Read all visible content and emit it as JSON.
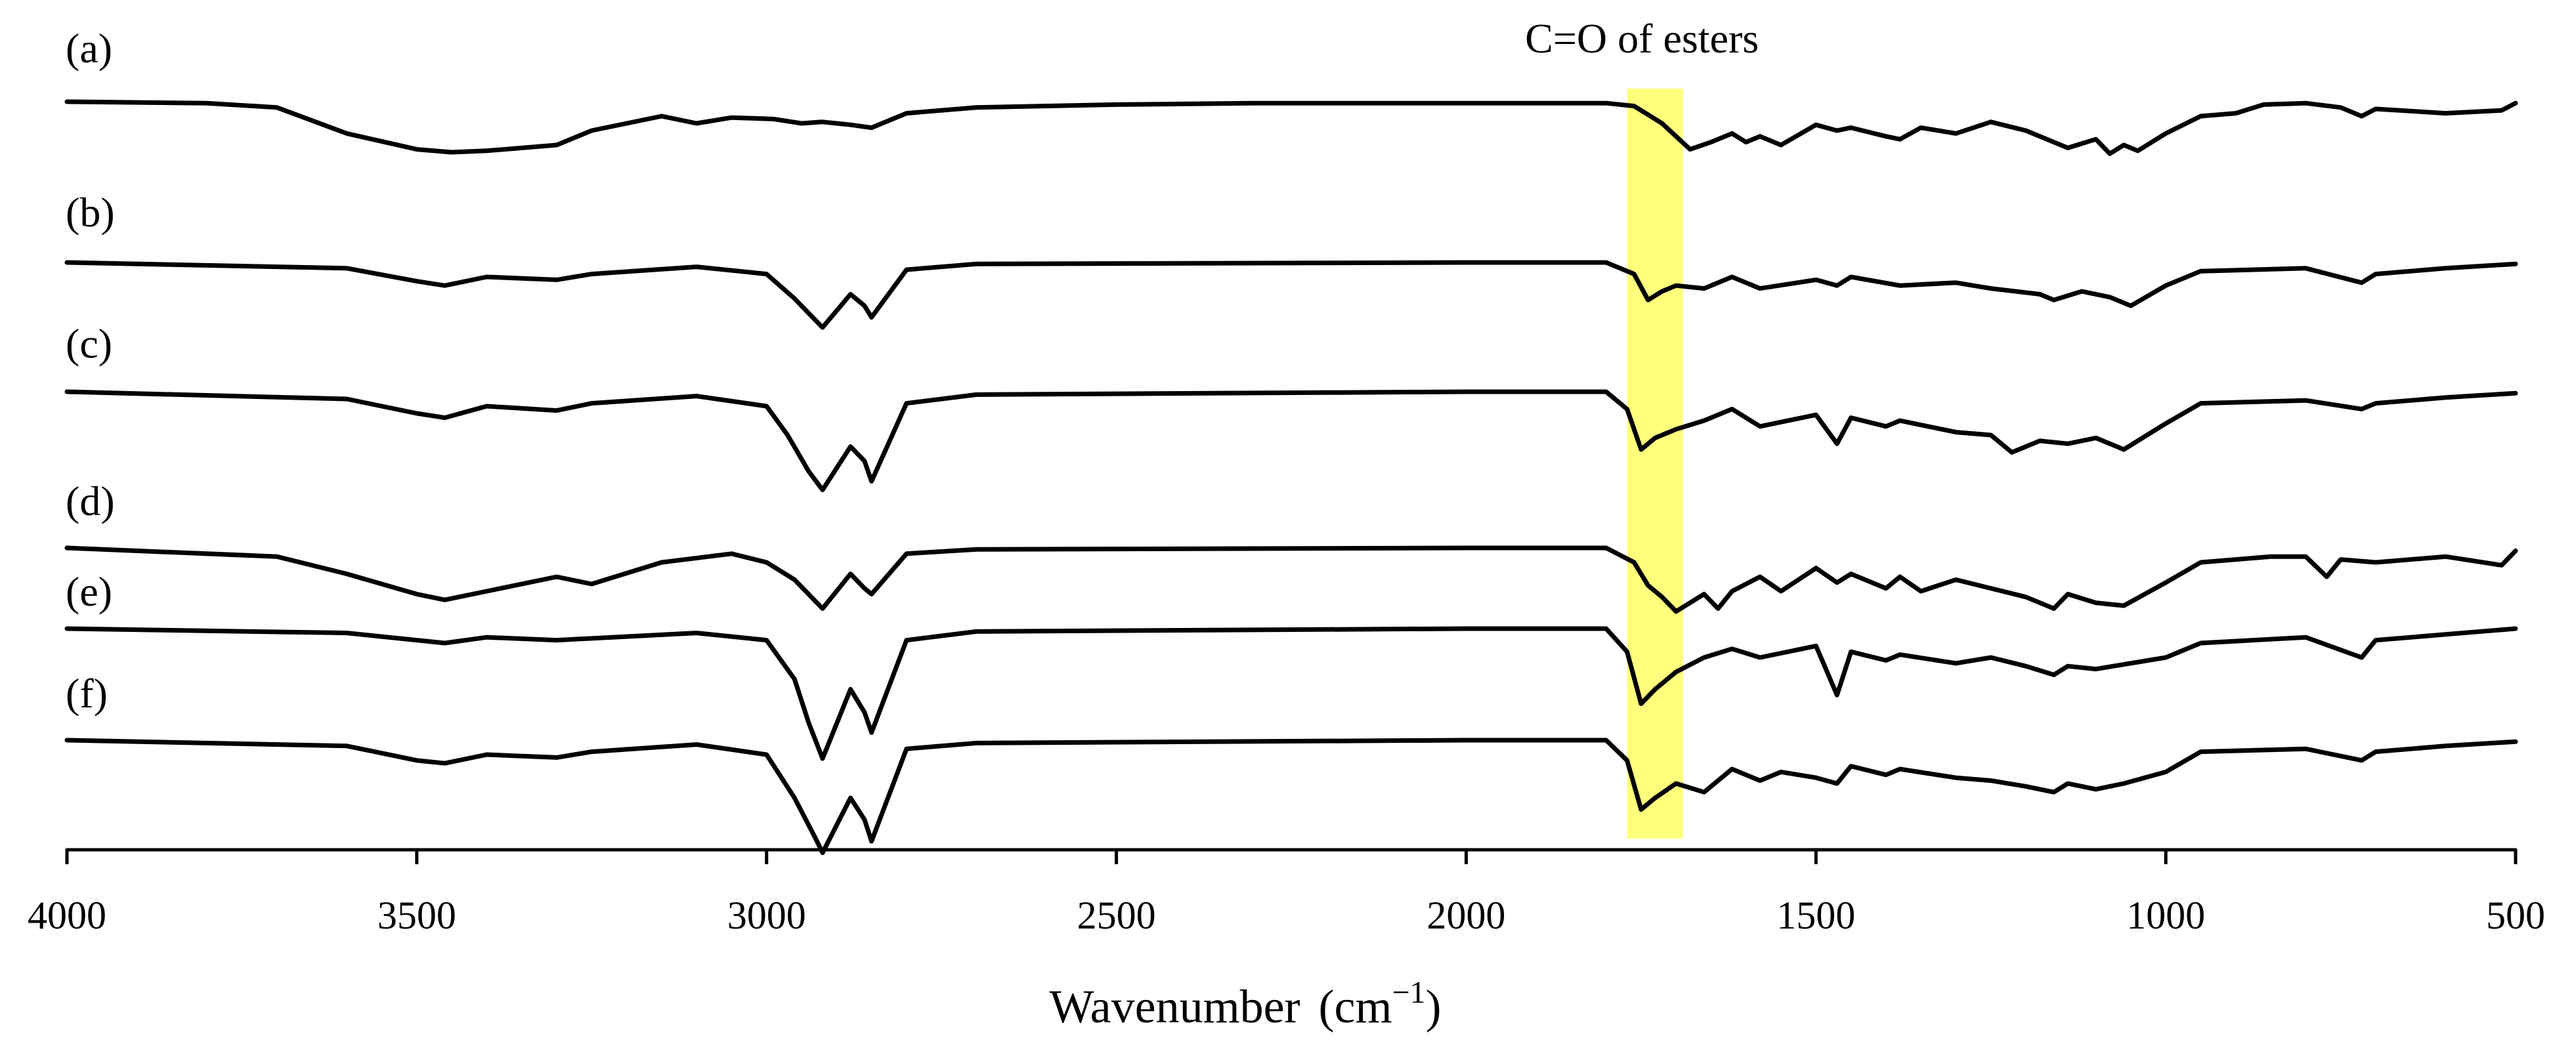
{
  "chart_data": {
    "type": "line",
    "title": "",
    "xlabel": "Wavenumber",
    "xlabel_unit_base": "cm",
    "xlabel_unit_exp": "−1",
    "ylabel": "",
    "xlim": [
      4000,
      500
    ],
    "x_reversed": true,
    "grid": false,
    "xticks": [
      "4000",
      "3500",
      "3000",
      "2500",
      "2000",
      "1500",
      "1000",
      "500"
    ],
    "xtick_values": [
      4000,
      3500,
      3000,
      2500,
      2000,
      1500,
      1000,
      500
    ],
    "highlight": {
      "x_range": [
        1770,
        1690
      ],
      "color": "#ffff66",
      "label": "C=O of esters"
    },
    "colors": {
      "line": "#000000",
      "highlight": "#ffff66"
    },
    "series": [
      {
        "name": "(a)",
        "x": [
          4000,
          3800,
          3700,
          3600,
          3500,
          3450,
          3400,
          3300,
          3250,
          3150,
          3100,
          3050,
          2990,
          2950,
          2920,
          2880,
          2850,
          2800,
          2700,
          2500,
          2300,
          2000,
          1800,
          1760,
          1740,
          1720,
          1700,
          1680,
          1650,
          1620,
          1600,
          1580,
          1550,
          1500,
          1470,
          1450,
          1400,
          1380,
          1350,
          1300,
          1250,
          1200,
          1160,
          1140,
          1100,
          1080,
          1060,
          1040,
          1000,
          950,
          900,
          860,
          800,
          750,
          720,
          700,
          600,
          520,
          500
        ],
        "values": [
          0,
          -1,
          -4,
          -22,
          -33,
          -35,
          -34,
          -30,
          -20,
          -10,
          -15,
          -11,
          -12,
          -15,
          -14,
          -16,
          -18,
          -8,
          -4,
          -2,
          -1,
          -1,
          -1,
          -3,
          -9,
          -15,
          -24,
          -33,
          -28,
          -22,
          -28,
          -24,
          -30,
          -16,
          -20,
          -18,
          -24,
          -26,
          -18,
          -22,
          -14,
          -20,
          -28,
          -32,
          -26,
          -36,
          -30,
          -34,
          -22,
          -10,
          -8,
          -2,
          -1,
          -4,
          -10,
          -5,
          -8,
          -6,
          -1
        ]
      },
      {
        "name": "(b)",
        "x": [
          4000,
          3600,
          3500,
          3460,
          3400,
          3300,
          3250,
          3100,
          3000,
          2960,
          2920,
          2880,
          2860,
          2850,
          2800,
          2700,
          2000,
          1800,
          1760,
          1740,
          1720,
          1700,
          1660,
          1620,
          1580,
          1500,
          1470,
          1450,
          1380,
          1300,
          1250,
          1180,
          1160,
          1120,
          1080,
          1050,
          1000,
          950,
          800,
          720,
          700,
          600,
          500
        ],
        "values": [
          0,
          -4,
          -13,
          -16,
          -10,
          -12,
          -8,
          -3,
          -8,
          -25,
          -45,
          -22,
          -30,
          -38,
          -5,
          -1,
          0,
          0,
          -8,
          -26,
          -20,
          -16,
          -18,
          -10,
          -18,
          -12,
          -16,
          -10,
          -16,
          -14,
          -18,
          -22,
          -26,
          -20,
          -24,
          -30,
          -16,
          -6,
          -4,
          -14,
          -8,
          -4,
          -1
        ]
      },
      {
        "name": "(c)",
        "x": [
          4000,
          3600,
          3500,
          3460,
          3400,
          3300,
          3250,
          3100,
          3000,
          2970,
          2940,
          2920,
          2880,
          2860,
          2850,
          2800,
          2700,
          2000,
          1800,
          1770,
          1750,
          1730,
          1700,
          1660,
          1620,
          1580,
          1500,
          1470,
          1450,
          1400,
          1380,
          1300,
          1250,
          1220,
          1180,
          1140,
          1100,
          1060,
          1000,
          950,
          800,
          720,
          700,
          600,
          500
        ],
        "values": [
          0,
          -5,
          -15,
          -18,
          -10,
          -13,
          -8,
          -3,
          -10,
          -30,
          -55,
          -68,
          -38,
          -48,
          -62,
          -8,
          -2,
          0,
          0,
          -12,
          -40,
          -32,
          -26,
          -20,
          -12,
          -24,
          -16,
          -36,
          -18,
          -24,
          -20,
          -28,
          -30,
          -42,
          -34,
          -36,
          -32,
          -40,
          -22,
          -8,
          -6,
          -12,
          -8,
          -4,
          -1
        ]
      },
      {
        "name": "(d)",
        "x": [
          4000,
          3700,
          3600,
          3500,
          3460,
          3400,
          3300,
          3250,
          3150,
          3050,
          3000,
          2960,
          2920,
          2880,
          2860,
          2850,
          2800,
          2700,
          2000,
          1800,
          1760,
          1740,
          1720,
          1700,
          1660,
          1640,
          1620,
          1580,
          1550,
          1500,
          1470,
          1450,
          1400,
          1380,
          1350,
          1300,
          1250,
          1200,
          1160,
          1140,
          1100,
          1060,
          1000,
          950,
          850,
          800,
          770,
          750,
          700,
          600,
          520,
          500
        ],
        "values": [
          0,
          -6,
          -18,
          -32,
          -36,
          -30,
          -20,
          -25,
          -10,
          -4,
          -10,
          -22,
          -42,
          -18,
          -28,
          -32,
          -4,
          -1,
          0,
          0,
          -10,
          -26,
          -34,
          -44,
          -32,
          -42,
          -30,
          -20,
          -30,
          -14,
          -24,
          -18,
          -28,
          -20,
          -30,
          -22,
          -28,
          -34,
          -42,
          -32,
          -38,
          -40,
          -24,
          -10,
          -6,
          -6,
          -20,
          -8,
          -10,
          -6,
          -12,
          -2
        ]
      },
      {
        "name": "(e)",
        "x": [
          4000,
          3600,
          3500,
          3460,
          3400,
          3300,
          3100,
          3000,
          2960,
          2940,
          2920,
          2880,
          2860,
          2850,
          2800,
          2700,
          2000,
          1800,
          1770,
          1750,
          1730,
          1700,
          1660,
          1620,
          1580,
          1500,
          1470,
          1450,
          1400,
          1380,
          1300,
          1250,
          1200,
          1160,
          1140,
          1100,
          1000,
          950,
          800,
          720,
          700,
          600,
          500
        ],
        "values": [
          0,
          -3,
          -8,
          -10,
          -6,
          -8,
          -3,
          -8,
          -35,
          -65,
          -90,
          -42,
          -58,
          -72,
          -8,
          -2,
          0,
          0,
          -16,
          -52,
          -42,
          -30,
          -20,
          -14,
          -20,
          -12,
          -46,
          -16,
          -22,
          -18,
          -24,
          -20,
          -26,
          -32,
          -26,
          -28,
          -20,
          -10,
          -6,
          -20,
          -8,
          -4,
          0
        ]
      },
      {
        "name": "(f)",
        "x": [
          4000,
          3600,
          3500,
          3460,
          3400,
          3300,
          3250,
          3100,
          3000,
          2960,
          2930,
          2920,
          2880,
          2860,
          2850,
          2800,
          2700,
          2000,
          1800,
          1770,
          1750,
          1730,
          1700,
          1660,
          1620,
          1580,
          1550,
          1500,
          1470,
          1450,
          1400,
          1380,
          1300,
          1250,
          1200,
          1160,
          1140,
          1100,
          1060,
          1000,
          950,
          800,
          720,
          700,
          600,
          500
        ],
        "values": [
          0,
          -4,
          -14,
          -16,
          -10,
          -12,
          -8,
          -3,
          -10,
          -40,
          -68,
          -78,
          -40,
          -55,
          -70,
          -6,
          -2,
          0,
          0,
          -14,
          -48,
          -40,
          -30,
          -36,
          -20,
          -28,
          -22,
          -26,
          -30,
          -18,
          -24,
          -20,
          -26,
          -28,
          -32,
          -36,
          -30,
          -34,
          -30,
          -22,
          -8,
          -6,
          -14,
          -8,
          -4,
          -1
        ]
      }
    ]
  }
}
